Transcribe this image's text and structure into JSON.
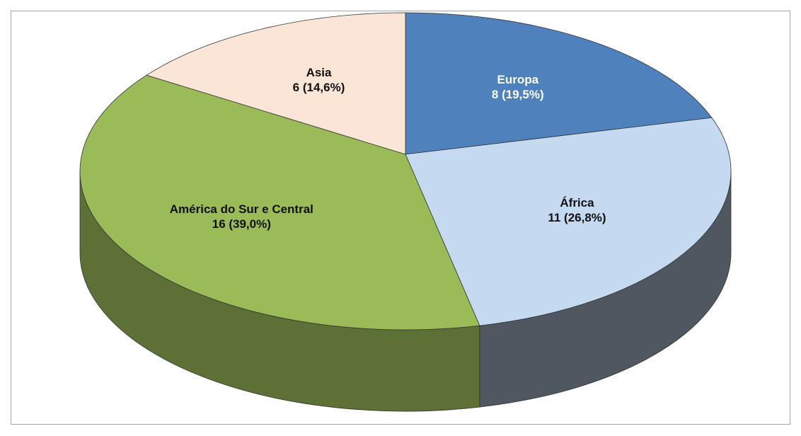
{
  "chart_data": {
    "type": "pie",
    "categories": [
      "Europa",
      "África",
      "América do Sur e Central",
      "Asia"
    ],
    "values": [
      8,
      11,
      16,
      6
    ],
    "value_labels": [
      "8 (19,5%)",
      "11 (26,8%)",
      "16 (39,0%)",
      "6 (14,6%)"
    ],
    "colors": [
      "#4f81bd",
      "#c5d9f1",
      "#9bbb59",
      "#fbe5d6"
    ]
  }
}
